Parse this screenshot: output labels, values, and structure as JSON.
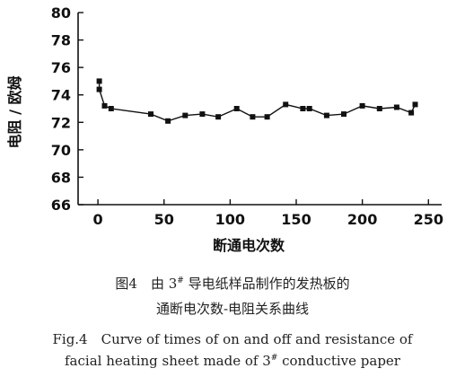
{
  "chart_data": {
    "type": "line",
    "xlabel": "断通电次数",
    "ylabel": "电阻 / 欧姆",
    "xlim": [
      -15,
      260
    ],
    "ylim": [
      66,
      80
    ],
    "x_ticks": [
      "0",
      "50",
      "100",
      "150",
      "200",
      "250"
    ],
    "x_tick_values": [
      0,
      50,
      100,
      150,
      200,
      250
    ],
    "y_ticks": [
      "66",
      "68",
      "70",
      "72",
      "74",
      "76",
      "78",
      "80"
    ],
    "y_tick_values": [
      66,
      68,
      70,
      72,
      74,
      76,
      78,
      80
    ],
    "marker": "square",
    "color": "#111111",
    "series": [
      {
        "x": [
          1,
          1,
          5,
          10,
          40,
          53,
          66,
          79,
          91,
          105,
          117,
          128,
          142,
          155,
          160,
          173,
          186,
          200,
          213,
          226,
          237,
          240
        ],
        "y": [
          75.0,
          74.4,
          73.2,
          73.0,
          72.6,
          72.1,
          72.5,
          72.6,
          72.4,
          73.0,
          72.4,
          72.4,
          73.3,
          73.0,
          73.0,
          72.5,
          72.6,
          73.2,
          73.0,
          73.1,
          72.7,
          73.3
        ]
      }
    ]
  },
  "caption": {
    "zh_line1_prefix": "图4　由 3",
    "zh_line1_sup": "#",
    "zh_line1_suffix": " 导电纸样品制作的发热板的",
    "zh_line2": "通断电次数-电阻关系曲线",
    "en_line1": "Fig.4　Curve of times of on and off and resistance of",
    "en_line2_prefix": "facial heating sheet made of 3",
    "en_line2_sup": "#",
    "en_line2_suffix": "  conductive paper"
  }
}
